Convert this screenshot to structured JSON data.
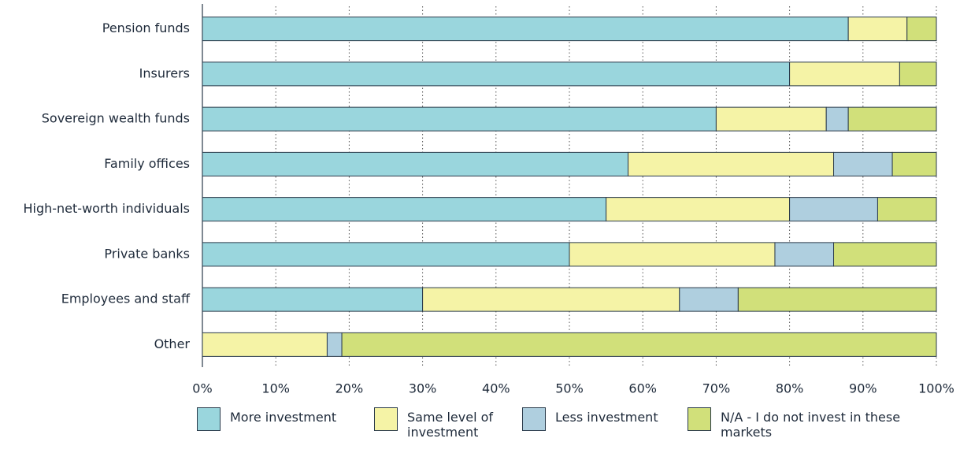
{
  "chart_data": {
    "type": "stacked-barh",
    "categories": [
      "Pension funds",
      "Insurers",
      "Sovereign wealth funds",
      "Family offices",
      "High-net-worth individuals",
      "Private banks",
      "Employees and staff",
      "Other"
    ],
    "series": [
      {
        "name": "More investment",
        "color": "#9ad6dd",
        "values": [
          88,
          80,
          70,
          58,
          55,
          50,
          30,
          0
        ]
      },
      {
        "name": "Same level of investment",
        "color": "#f5f3a6",
        "values": [
          8,
          15,
          15,
          28,
          25,
          28,
          35,
          17
        ]
      },
      {
        "name": "Less investment",
        "color": "#afcfdf",
        "values": [
          0,
          0,
          3,
          8,
          12,
          8,
          8,
          2
        ]
      },
      {
        "name": "N/A - I do not invest in these markets",
        "color": "#d1e07a",
        "values": [
          4,
          5,
          12,
          6,
          8,
          14,
          27,
          81
        ]
      }
    ],
    "xlim": [
      0,
      100
    ],
    "xticks": [
      {
        "value": 0,
        "label": "0%"
      },
      {
        "value": 10,
        "label": "10%"
      },
      {
        "value": 20,
        "label": "20%"
      },
      {
        "value": 30,
        "label": "30%"
      },
      {
        "value": 40,
        "label": "40%"
      },
      {
        "value": 50,
        "label": "50%"
      },
      {
        "value": 60,
        "label": "60%"
      },
      {
        "value": 70,
        "label": "70%"
      },
      {
        "value": 80,
        "label": "80%"
      },
      {
        "value": 90,
        "label": "90%"
      },
      {
        "value": 100,
        "label": "100%"
      }
    ],
    "grid": true
  }
}
